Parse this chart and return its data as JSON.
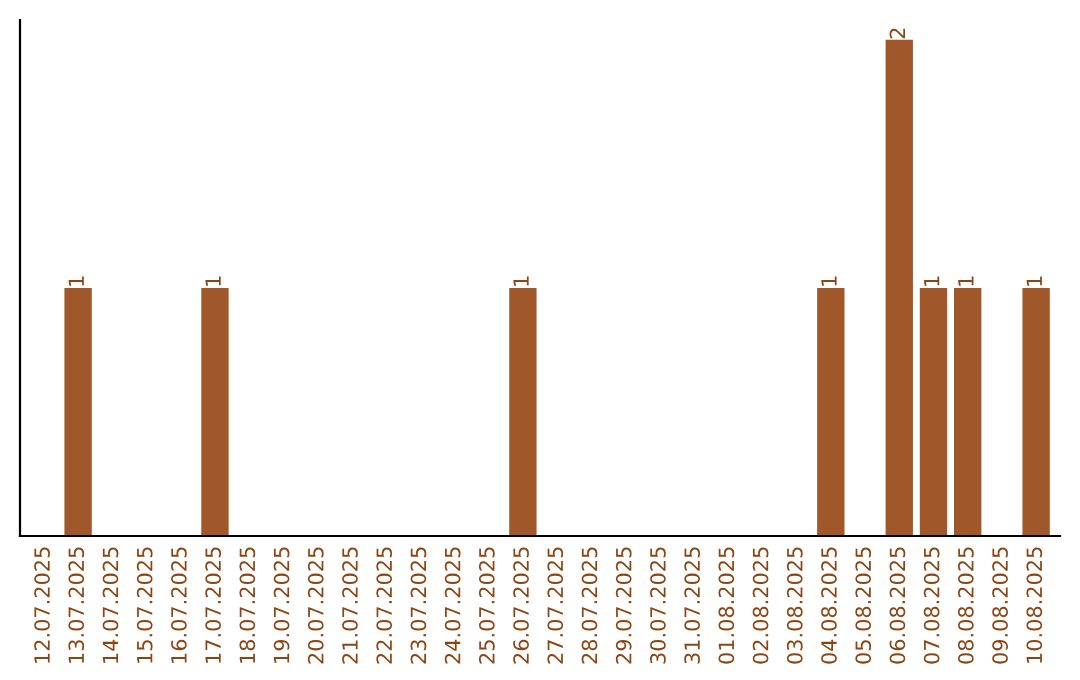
{
  "chart_data": {
    "type": "bar",
    "categories": [
      "12.07.2025",
      "13.07.2025",
      "14.07.2025",
      "15.07.2025",
      "16.07.2025",
      "17.07.2025",
      "18.07.2025",
      "19.07.2025",
      "20.07.2025",
      "21.07.2025",
      "22.07.2025",
      "23.07.2025",
      "24.07.2025",
      "25.07.2025",
      "26.07.2025",
      "27.07.2025",
      "28.07.2025",
      "29.07.2025",
      "30.07.2025",
      "31.07.2025",
      "01.08.2025",
      "02.08.2025",
      "03.08.2025",
      "04.08.2025",
      "05.08.2025",
      "06.08.2025",
      "07.08.2025",
      "08.08.2025",
      "09.08.2025",
      "10.08.2025"
    ],
    "values": [
      0,
      1,
      0,
      0,
      0,
      1,
      0,
      0,
      0,
      0,
      0,
      0,
      0,
      0,
      1,
      0,
      0,
      0,
      0,
      0,
      0,
      0,
      0,
      1,
      0,
      2,
      1,
      1,
      0,
      1
    ],
    "value_labels": [
      null,
      "1",
      null,
      null,
      null,
      "1",
      null,
      null,
      null,
      null,
      null,
      null,
      null,
      null,
      "1",
      null,
      null,
      null,
      null,
      null,
      null,
      null,
      null,
      "1",
      null,
      "2",
      "1",
      "1",
      null,
      "1"
    ],
    "color": "#a0582a",
    "tick_labels": "x",
    "grid": false,
    "legend": false
  }
}
